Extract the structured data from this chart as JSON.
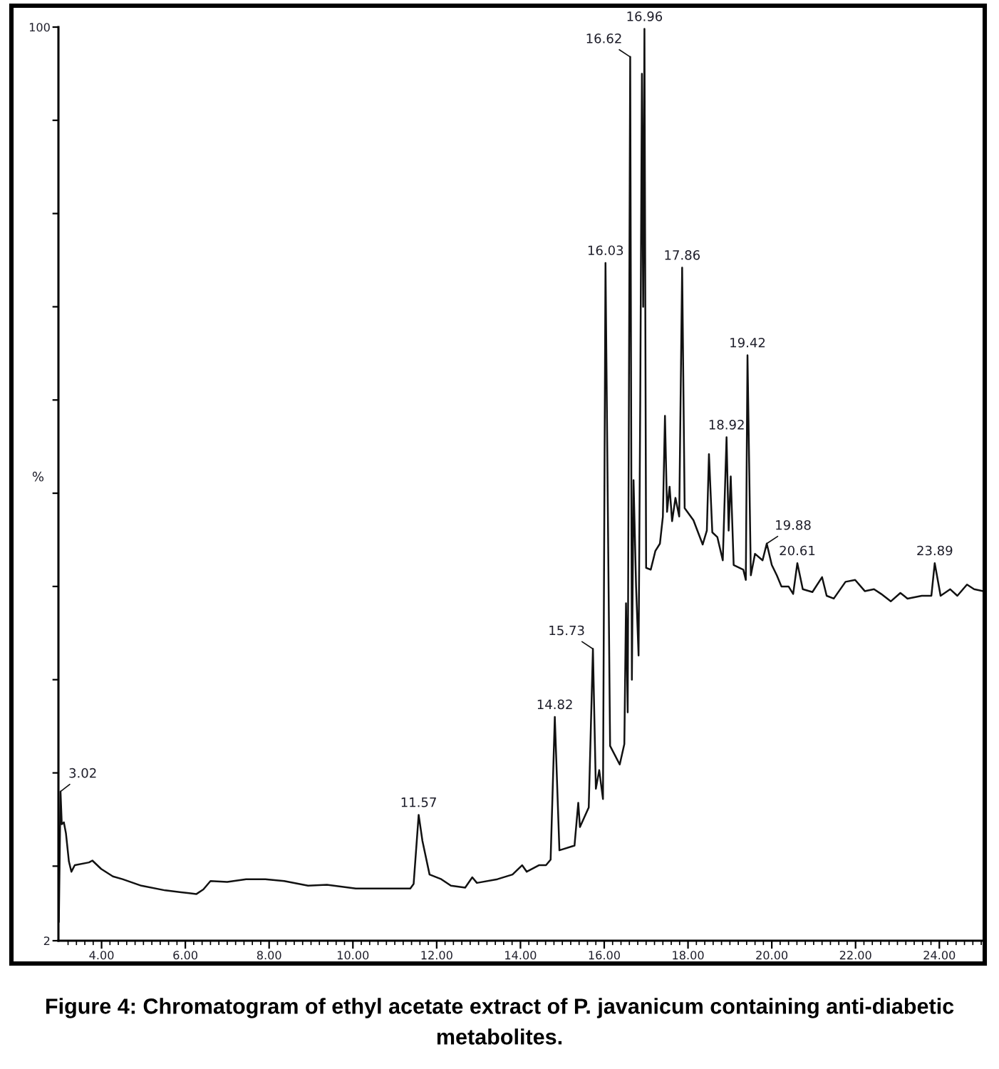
{
  "chart_data": {
    "type": "line",
    "ylabel": "%",
    "xlim": [
      2.97,
      25.05
    ],
    "xticks": [
      {
        "value": 3.2,
        "label": null
      },
      {
        "value": 3.4,
        "label": null
      },
      {
        "value": 3.6,
        "label": null
      },
      {
        "value": 3.8,
        "label": null
      },
      {
        "value": 4,
        "label": "4.00"
      },
      {
        "value": 4.2,
        "label": null
      },
      {
        "value": 4.4,
        "label": null
      },
      {
        "value": 4.6,
        "label": null
      },
      {
        "value": 4.8,
        "label": null
      },
      {
        "value": 5,
        "label": null
      },
      {
        "value": 5.2,
        "label": null
      },
      {
        "value": 5.4,
        "label": null
      },
      {
        "value": 5.6,
        "label": null
      },
      {
        "value": 5.8,
        "label": null
      },
      {
        "value": 6,
        "label": "6.00"
      },
      {
        "value": 6.2,
        "label": null
      },
      {
        "value": 6.4,
        "label": null
      },
      {
        "value": 6.6,
        "label": null
      },
      {
        "value": 6.8,
        "label": null
      },
      {
        "value": 7,
        "label": null
      },
      {
        "value": 7.2,
        "label": null
      },
      {
        "value": 7.4,
        "label": null
      },
      {
        "value": 7.6,
        "label": null
      },
      {
        "value": 7.8,
        "label": null
      },
      {
        "value": 8,
        "label": "8.00"
      },
      {
        "value": 8.2,
        "label": null
      },
      {
        "value": 8.4,
        "label": null
      },
      {
        "value": 8.6,
        "label": null
      },
      {
        "value": 8.8,
        "label": null
      },
      {
        "value": 9,
        "label": null
      },
      {
        "value": 9.2,
        "label": null
      },
      {
        "value": 9.4,
        "label": null
      },
      {
        "value": 9.6,
        "label": null
      },
      {
        "value": 9.8,
        "label": null
      },
      {
        "value": 10,
        "label": "10.00"
      },
      {
        "value": 10.2,
        "label": null
      },
      {
        "value": 10.4,
        "label": null
      },
      {
        "value": 10.6,
        "label": null
      },
      {
        "value": 10.8,
        "label": null
      },
      {
        "value": 11,
        "label": null
      },
      {
        "value": 11.2,
        "label": null
      },
      {
        "value": 11.4,
        "label": null
      },
      {
        "value": 11.6,
        "label": null
      },
      {
        "value": 11.8,
        "label": null
      },
      {
        "value": 12,
        "label": "12.00"
      },
      {
        "value": 12.2,
        "label": null
      },
      {
        "value": 12.4,
        "label": null
      },
      {
        "value": 12.6,
        "label": null
      },
      {
        "value": 12.8,
        "label": null
      },
      {
        "value": 13,
        "label": null
      },
      {
        "value": 13.2,
        "label": null
      },
      {
        "value": 13.4,
        "label": null
      },
      {
        "value": 13.6,
        "label": null
      },
      {
        "value": 13.8,
        "label": null
      },
      {
        "value": 14,
        "label": "14.00"
      },
      {
        "value": 14.2,
        "label": null
      },
      {
        "value": 14.4,
        "label": null
      },
      {
        "value": 14.6,
        "label": null
      },
      {
        "value": 14.8,
        "label": null
      },
      {
        "value": 15,
        "label": null
      },
      {
        "value": 15.2,
        "label": null
      },
      {
        "value": 15.4,
        "label": null
      },
      {
        "value": 15.6,
        "label": null
      },
      {
        "value": 15.8,
        "label": null
      },
      {
        "value": 16,
        "label": "16.00"
      },
      {
        "value": 16.2,
        "label": null
      },
      {
        "value": 16.4,
        "label": null
      },
      {
        "value": 16.6,
        "label": null
      },
      {
        "value": 16.8,
        "label": null
      },
      {
        "value": 17,
        "label": null
      },
      {
        "value": 17.2,
        "label": null
      },
      {
        "value": 17.4,
        "label": null
      },
      {
        "value": 17.6,
        "label": null
      },
      {
        "value": 17.8,
        "label": null
      },
      {
        "value": 18,
        "label": "18.00"
      },
      {
        "value": 18.2,
        "label": null
      },
      {
        "value": 18.4,
        "label": null
      },
      {
        "value": 18.6,
        "label": null
      },
      {
        "value": 18.8,
        "label": null
      },
      {
        "value": 19,
        "label": null
      },
      {
        "value": 19.2,
        "label": null
      },
      {
        "value": 19.4,
        "label": null
      },
      {
        "value": 19.6,
        "label": null
      },
      {
        "value": 19.8,
        "label": null
      },
      {
        "value": 20,
        "label": "20.00"
      },
      {
        "value": 20.2,
        "label": null
      },
      {
        "value": 20.4,
        "label": null
      },
      {
        "value": 20.6,
        "label": null
      },
      {
        "value": 20.8,
        "label": null
      },
      {
        "value": 21,
        "label": null
      },
      {
        "value": 21.2,
        "label": null
      },
      {
        "value": 21.4,
        "label": null
      },
      {
        "value": 21.6,
        "label": null
      },
      {
        "value": 21.8,
        "label": null
      },
      {
        "value": 22,
        "label": "22.00"
      },
      {
        "value": 22.2,
        "label": null
      },
      {
        "value": 22.4,
        "label": null
      },
      {
        "value": 22.6,
        "label": null
      },
      {
        "value": 22.8,
        "label": null
      },
      {
        "value": 23,
        "label": null
      },
      {
        "value": 23.2,
        "label": null
      },
      {
        "value": 23.4,
        "label": null
      },
      {
        "value": 23.6,
        "label": null
      },
      {
        "value": 23.8,
        "label": null
      },
      {
        "value": 24,
        "label": "24.00"
      },
      {
        "value": 24.2,
        "label": null
      },
      {
        "value": 24.4,
        "label": null
      },
      {
        "value": 24.6,
        "label": null
      },
      {
        "value": 24.8,
        "label": null
      },
      {
        "value": 25,
        "label": null
      }
    ],
    "ylim": [
      2,
      100
    ],
    "yticks": [
      2,
      {
        "value": 10,
        "label": null
      },
      {
        "value": 20,
        "label": null
      },
      {
        "value": 30,
        "label": null
      },
      {
        "value": 40,
        "label": null
      },
      {
        "value": 50,
        "label": null
      },
      {
        "value": 60,
        "label": null
      },
      {
        "value": 70,
        "label": null
      },
      {
        "value": 80,
        "label": null
      },
      {
        "value": 90,
        "label": null
      },
      100
    ],
    "series": [
      {
        "color": "#111111",
        "x": [
          2.98,
          3.02,
          3.05,
          3.1,
          3.15,
          3.22,
          3.28,
          3.36,
          3.7,
          3.78,
          3.99,
          4.27,
          4.5,
          4.95,
          5.52,
          6.09,
          6.26,
          6.43,
          6.6,
          7.0,
          7.45,
          7.91,
          8.36,
          8.93,
          9.38,
          10.07,
          10.64,
          11.37,
          11.45,
          11.57,
          11.66,
          11.83,
          12.11,
          12.34,
          12.68,
          12.85,
          12.96,
          13.45,
          13.81,
          14.04,
          14.15,
          14.44,
          14.61,
          14.72,
          14.82,
          14.93,
          15.29,
          15.38,
          15.42,
          15.63,
          15.73,
          15.8,
          15.88,
          15.97,
          16.03,
          16.14,
          16.37,
          16.48,
          16.52,
          16.56,
          16.62,
          16.66,
          16.7,
          16.76,
          16.82,
          16.86,
          16.9,
          16.93,
          16.96,
          17.0,
          17.11,
          17.22,
          17.33,
          17.4,
          17.45,
          17.5,
          17.56,
          17.62,
          17.7,
          17.79,
          17.86,
          17.92,
          18.13,
          18.35,
          18.45,
          18.5,
          18.58,
          18.7,
          18.83,
          18.92,
          18.97,
          19.02,
          19.09,
          19.32,
          19.38,
          19.42,
          19.5,
          19.6,
          19.78,
          19.88,
          20.0,
          20.12,
          20.23,
          20.4,
          20.51,
          20.61,
          20.74,
          20.97,
          21.2,
          21.31,
          21.48,
          21.76,
          21.99,
          22.22,
          22.44,
          22.61,
          22.84,
          23.07,
          23.24,
          23.58,
          23.81,
          23.89,
          24.03,
          24.26,
          24.43,
          24.66,
          24.83,
          25.05
        ],
        "values": [
          4.0,
          18.0,
          14.5,
          14.7,
          13.5,
          10.5,
          9.4,
          10.1,
          10.4,
          10.6,
          9.7,
          8.9,
          8.6,
          7.9,
          7.4,
          7.1,
          7.0,
          7.5,
          8.4,
          8.3,
          8.6,
          8.6,
          8.4,
          7.9,
          8.0,
          7.6,
          7.6,
          7.6,
          8.1,
          15.5,
          12.7,
          9.1,
          8.6,
          7.9,
          7.7,
          8.8,
          8.2,
          8.6,
          9.1,
          10.1,
          9.4,
          10.1,
          10.1,
          10.7,
          26.0,
          11.7,
          12.2,
          16.8,
          14.2,
          16.3,
          33.3,
          18.3,
          20.3,
          17.2,
          74.7,
          22.9,
          20.9,
          23.1,
          38.2,
          26.5,
          96.8,
          30.0,
          51.4,
          40.0,
          32.6,
          60.0,
          95.0,
          70.0,
          99.8,
          42.0,
          41.8,
          43.8,
          44.6,
          47.5,
          58.3,
          48.0,
          50.7,
          47.0,
          49.5,
          47.5,
          74.2,
          48.4,
          47.1,
          44.5,
          46.0,
          54.2,
          45.8,
          45.3,
          42.8,
          56.0,
          46.0,
          51.8,
          42.3,
          41.8,
          40.7,
          64.8,
          41.2,
          43.5,
          42.8,
          44.6,
          42.3,
          41.2,
          40.0,
          40.0,
          39.2,
          42.5,
          39.7,
          39.4,
          41.0,
          39.0,
          38.7,
          40.5,
          40.7,
          39.5,
          39.7,
          39.2,
          38.4,
          39.3,
          38.7,
          39.0,
          39.0,
          42.5,
          39.0,
          39.7,
          39.0,
          40.2,
          39.7,
          39.5
        ]
      }
    ],
    "annotations": [
      {
        "text": "3.02",
        "x": 3.02,
        "y": 18.0
      },
      {
        "text": "11.57",
        "x": 11.57,
        "y": 15.5
      },
      {
        "text": "14.82",
        "x": 14.82,
        "y": 26.0
      },
      {
        "text": "15.73",
        "x": 15.73,
        "y": 33.3
      },
      {
        "text": "16.03",
        "x": 16.03,
        "y": 74.7
      },
      {
        "text": "16.62",
        "x": 16.62,
        "y": 96.8
      },
      {
        "text": "16.96",
        "x": 16.96,
        "y": 99.8
      },
      {
        "text": "17.86",
        "x": 17.86,
        "y": 74.2
      },
      {
        "text": "18.92",
        "x": 18.92,
        "y": 56.0
      },
      {
        "text": "19.42",
        "x": 19.42,
        "y": 64.8
      },
      {
        "text": "19.88",
        "x": 19.88,
        "y": 44.6
      },
      {
        "text": "20.61",
        "x": 20.61,
        "y": 42.5
      },
      {
        "text": "23.89",
        "x": 23.89,
        "y": 42.5
      },
      "Figure 4: Chromatogram of ethyl acetate extract of P. javanicum containing anti-diabetic metabolites."
    ]
  }
}
